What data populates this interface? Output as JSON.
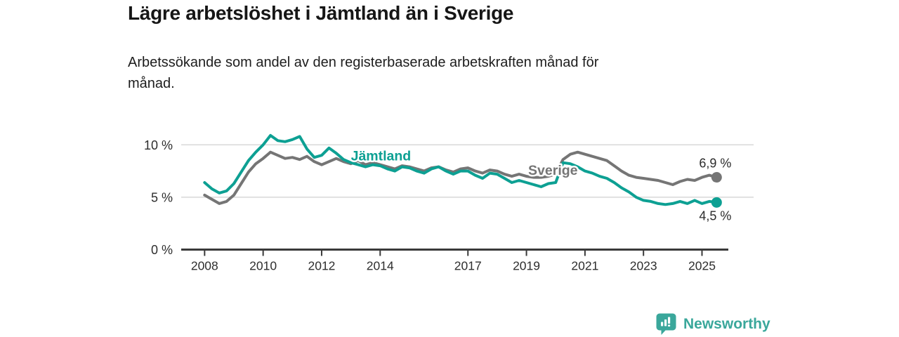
{
  "header": {
    "title": "Lägre arbetslöshet i Jämtland än i Sverige",
    "subtitle_lines": [
      "Arbetssökande som andel av den registerbaserade arbetskraften månad för",
      "månad."
    ]
  },
  "chart_data": {
    "type": "line",
    "title": "Lägre arbetslöshet i Jämtland än i Sverige",
    "subtitle": "Arbetssökande som andel av den registerbaserade arbetskraften månad för månad.",
    "unit": "%",
    "x_start": 2008.0,
    "x_step_years": 0.25,
    "xlim": [
      2007.2,
      2025.9
    ],
    "ylim": [
      0,
      12
    ],
    "grid": "horizontal-light",
    "grid_color": "#d8d8d8",
    "axis_color": "#3a3a3a",
    "tick_label_color": "#2e2e2e",
    "yticks": [
      {
        "value": 0,
        "label": "0 %"
      },
      {
        "value": 5,
        "label": "5 %"
      },
      {
        "value": 10,
        "label": "10 %"
      }
    ],
    "xticks": [
      {
        "value": 2008,
        "label": "2008"
      },
      {
        "value": 2010,
        "label": "2010"
      },
      {
        "value": 2012,
        "label": "2012"
      },
      {
        "value": 2014,
        "label": "2014"
      },
      {
        "value": 2017,
        "label": "2017"
      },
      {
        "value": 2019,
        "label": "2019"
      },
      {
        "value": 2021,
        "label": "2021"
      },
      {
        "value": 2023,
        "label": "2023"
      },
      {
        "value": 2025,
        "label": "2025"
      }
    ],
    "series": [
      {
        "name": "Sverige",
        "color": "#757575",
        "end_label": "6,9 %",
        "end_value": 6.9,
        "values": [
          5.2,
          4.8,
          4.4,
          4.6,
          5.2,
          6.3,
          7.4,
          8.2,
          8.7,
          9.3,
          9.0,
          8.7,
          8.8,
          8.6,
          8.9,
          8.4,
          8.1,
          8.4,
          8.7,
          8.4,
          8.2,
          8.5,
          8.1,
          8.3,
          8.1,
          7.9,
          7.7,
          8.0,
          7.9,
          7.7,
          7.5,
          7.8,
          7.9,
          7.6,
          7.4,
          7.7,
          7.8,
          7.5,
          7.3,
          7.6,
          7.5,
          7.2,
          7.0,
          7.2,
          7.0,
          6.9,
          6.9,
          7.0,
          7.2,
          8.6,
          9.1,
          9.3,
          9.1,
          8.9,
          8.7,
          8.5,
          8.0,
          7.5,
          7.1,
          6.9,
          6.8,
          6.7,
          6.6,
          6.4,
          6.2,
          6.5,
          6.7,
          6.6,
          6.9,
          7.1,
          6.9
        ]
      },
      {
        "name": "Jämtland",
        "color": "#0da093",
        "end_label": "4,5 %",
        "end_value": 4.5,
        "values": [
          6.4,
          5.8,
          5.4,
          5.6,
          6.3,
          7.4,
          8.5,
          9.3,
          10.0,
          10.9,
          10.4,
          10.3,
          10.5,
          10.8,
          9.6,
          8.8,
          9.0,
          9.7,
          9.2,
          8.6,
          8.3,
          8.1,
          7.9,
          8.1,
          8.0,
          7.7,
          7.5,
          7.9,
          7.8,
          7.5,
          7.3,
          7.7,
          7.9,
          7.5,
          7.2,
          7.5,
          7.5,
          7.1,
          6.8,
          7.3,
          7.2,
          6.8,
          6.4,
          6.6,
          6.4,
          6.2,
          6.0,
          6.3,
          6.4,
          8.3,
          8.2,
          7.9,
          7.5,
          7.3,
          7.0,
          6.8,
          6.4,
          5.9,
          5.5,
          5.0,
          4.7,
          4.6,
          4.4,
          4.3,
          4.4,
          4.6,
          4.4,
          4.7,
          4.4,
          4.6,
          4.5
        ]
      }
    ]
  },
  "footer": {
    "brand": "Newsworthy",
    "brand_color": "#3aa79b"
  }
}
